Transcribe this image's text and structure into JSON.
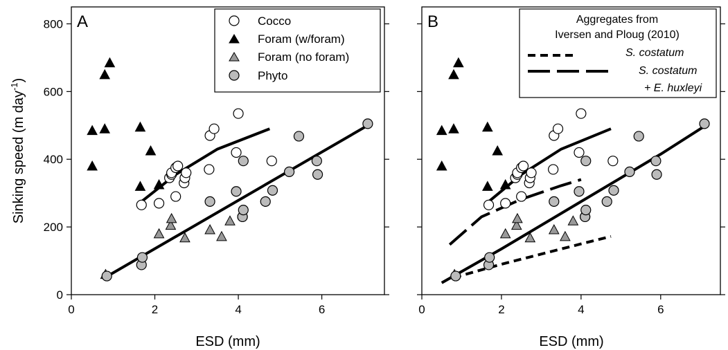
{
  "chart_data": [
    {
      "type": "scatter",
      "panel_label": "A",
      "xlabel": "ESD (mm)",
      "ylabel": "Sinking speed (m day",
      "ylabel_sup": "-1",
      "ylabel_close": ")",
      "xlim": [
        0,
        7.5
      ],
      "ylim": [
        0,
        850
      ],
      "xticks": [
        0,
        2,
        4,
        6
      ],
      "yticks": [
        0,
        200,
        400,
        600,
        800
      ],
      "legend_position": "top-right",
      "series": [
        {
          "name": "Cocco",
          "marker": "circle",
          "fill": "#ffffff",
          "x": [
            1.68,
            2.1,
            2.35,
            2.4,
            2.4,
            2.5,
            2.5,
            2.55,
            2.7,
            2.72,
            2.75,
            3.3,
            3.32,
            3.42,
            3.95,
            4.0,
            4.1,
            4.8
          ],
          "y": [
            265,
            270,
            345,
            355,
            360,
            290,
            375,
            380,
            330,
            345,
            360,
            370,
            470,
            490,
            420,
            535,
            230,
            395
          ]
        },
        {
          "name": "Foram (w/foram)",
          "marker": "triangle",
          "fill": "#000000",
          "x": [
            0.5,
            0.5,
            0.8,
            0.8,
            0.92,
            1.65,
            1.65,
            1.9,
            2.1
          ],
          "y": [
            380,
            485,
            490,
            650,
            685,
            495,
            320,
            425,
            325
          ]
        },
        {
          "name": "Foram (no foram)",
          "marker": "triangle",
          "fill": "#999999",
          "x": [
            0.82,
            2.1,
            2.38,
            2.4,
            2.72,
            3.32,
            3.6,
            3.8
          ],
          "y": [
            60,
            180,
            205,
            225,
            168,
            192,
            172,
            218
          ]
        },
        {
          "name": "Phyto",
          "marker": "circle",
          "fill": "#bbbbbb",
          "x": [
            0.85,
            1.68,
            1.7,
            3.32,
            3.95,
            4.1,
            4.12,
            4.12,
            4.65,
            4.82,
            5.22,
            5.45,
            5.88,
            5.9,
            7.1
          ],
          "y": [
            55,
            88,
            110,
            275,
            305,
            230,
            250,
            395,
            275,
            308,
            363,
            468,
            395,
            355,
            505
          ]
        }
      ],
      "fits": [
        {
          "style": "solid",
          "x": [
            1.65,
            2.5,
            3.5,
            4.75
          ],
          "y": [
            272,
            355,
            430,
            490
          ]
        },
        {
          "style": "solid",
          "x": [
            0.8,
            7.1
          ],
          "y": [
            50,
            500
          ]
        }
      ]
    },
    {
      "type": "scatter",
      "panel_label": "B",
      "xlabel": "ESD (mm)",
      "xlim": [
        0,
        7.5
      ],
      "ylim": [
        0,
        850
      ],
      "xticks": [
        0,
        2,
        4,
        6
      ],
      "yticks": [
        0,
        200,
        400,
        600,
        800
      ],
      "legend_position": "top-right",
      "legend_title_lines": [
        "Aggregates from",
        "Iversen and Ploug (2010)"
      ],
      "legend_entries": [
        {
          "label": "S. costatum",
          "style": "short-dash",
          "italic": true
        },
        {
          "label": "S. costatum",
          "label_line2": "+ E. huxleyi",
          "style": "long-dash",
          "italic": true
        }
      ],
      "series_same_as_panel_A": true,
      "fits": [
        {
          "style": "solid",
          "x": [
            1.65,
            2.5,
            3.5,
            4.75
          ],
          "y": [
            272,
            355,
            430,
            490
          ]
        },
        {
          "style": "solid",
          "x": [
            0.5,
            2,
            4,
            6,
            7.2
          ],
          "y": [
            35,
            135,
            275,
            415,
            505
          ]
        },
        {
          "style": "short-dash",
          "x": [
            0.8,
            2,
            3,
            4,
            4.75
          ],
          "y": [
            50,
            90,
            120,
            150,
            172
          ]
        },
        {
          "style": "long-dash",
          "x": [
            0.7,
            1.5,
            2.5,
            3.5,
            4.0
          ],
          "y": [
            148,
            230,
            282,
            322,
            340
          ]
        }
      ]
    }
  ]
}
